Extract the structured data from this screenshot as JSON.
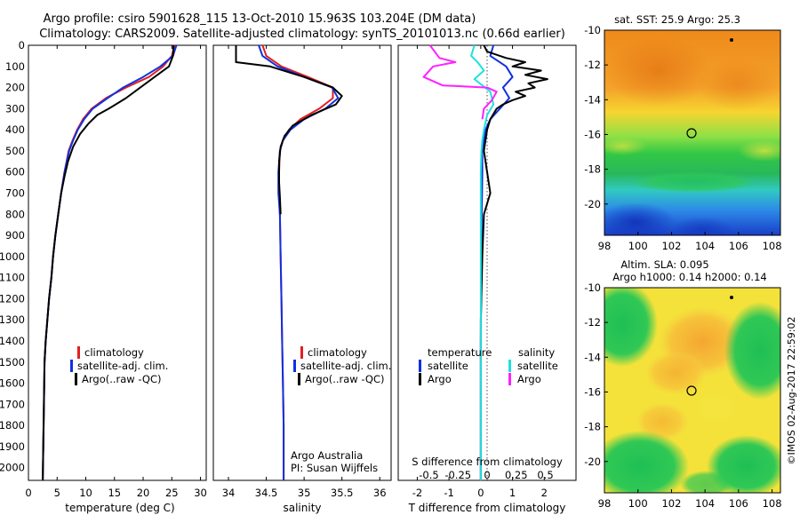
{
  "header": {
    "line1": "Argo profile: csiro 5901628_115 13-Oct-2010 15.963S 103.204E (DM data)",
    "line2": "Climatology: CARS2009. Satellite-adjusted climatology: synTS_20101013.nc (0.66d earlier)"
  },
  "colors": {
    "climatology": "#e02020",
    "satellite": "#1030e0",
    "argo": "#000000",
    "argo_salinity": "#ff20ff",
    "sat_salinity": "#20e0e0"
  },
  "y_axis": {
    "ticks": [
      "0",
      "100",
      "200",
      "300",
      "400",
      "500",
      "600",
      "700",
      "800",
      "900",
      "1000",
      "1100",
      "1200",
      "1300",
      "1400",
      "1500",
      "1600",
      "1700",
      "1800",
      "1900",
      "2000"
    ]
  },
  "legend": {
    "climatology": "climatology",
    "satellite": "satellite-adj. clim.",
    "argo": "Argo(..raw -QC)"
  },
  "diff_legend": {
    "temperature": "temperature",
    "salinity": "salinity",
    "satellite": "satellite",
    "argo": "Argo"
  },
  "credits": {
    "line1": "Argo Australia",
    "line2": "PI: Susan Wijffels"
  },
  "side_label": "©IMOS 02-Aug-2017 22:59:02",
  "maps": {
    "sst_title": "sat. SST: 25.9 Argo: 25.3",
    "sla_title1": "Altim. SLA: 0.095",
    "sla_title2": "Argo h1000: 0.14 h2000: 0.14",
    "y_ticks": [
      "-10",
      "-12",
      "-14",
      "-16",
      "-18",
      "-20"
    ],
    "x_ticks": [
      "98",
      "100",
      "102",
      "104",
      "106",
      "108"
    ]
  },
  "chart_data": [
    {
      "type": "line",
      "xlabel": "temperature (deg C)",
      "ylabel": "",
      "xlim": [
        0,
        31
      ],
      "ylim": [
        2060,
        0
      ],
      "xticks": [
        "0",
        "5",
        "10",
        "15",
        "20",
        "25",
        "30"
      ],
      "series": [
        {
          "name": "climatology",
          "x": [
            25.5,
            25.0,
            23.5,
            21.0,
            17.0,
            13.5,
            11.0,
            9.5,
            8.5,
            7.7,
            7.0,
            6.3,
            5.7,
            5.2,
            4.7,
            4.3,
            4.0,
            3.6,
            3.3,
            3.0,
            2.8,
            2.7,
            2.5
          ],
          "y": [
            0,
            50,
            100,
            150,
            200,
            250,
            300,
            350,
            400,
            450,
            500,
            600,
            700,
            800,
            900,
            1000,
            1100,
            1200,
            1300,
            1400,
            1500,
            1700,
            2060
          ]
        },
        {
          "name": "satellite-adj. clim.",
          "x": [
            25.8,
            25.2,
            23.0,
            20.0,
            16.5,
            13.8,
            11.2,
            9.7,
            8.6,
            7.8,
            7.1,
            6.3,
            5.7,
            5.2,
            4.7,
            4.3,
            4.0,
            3.6,
            3.3,
            3.0,
            2.8,
            2.7,
            2.5
          ],
          "y": [
            0,
            50,
            100,
            150,
            200,
            250,
            300,
            350,
            400,
            450,
            500,
            600,
            700,
            800,
            900,
            1000,
            1100,
            1200,
            1300,
            1400,
            1500,
            1700,
            2060
          ]
        },
        {
          "name": "Argo(..raw -QC)",
          "x": [
            25.3,
            25.2,
            24.5,
            22.0,
            19.5,
            17.0,
            14.0,
            12.0,
            10.5,
            9.0,
            7.8,
            6.9,
            6.3,
            5.7,
            5.2,
            4.7,
            4.3,
            4.0,
            3.6,
            3.3,
            3.0,
            2.8,
            2.7,
            2.5
          ],
          "y": [
            0,
            50,
            100,
            150,
            200,
            250,
            300,
            330,
            370,
            420,
            480,
            550,
            620,
            700,
            800,
            900,
            1000,
            1100,
            1200,
            1300,
            1400,
            1500,
            1700,
            2060
          ]
        }
      ]
    },
    {
      "type": "line",
      "xlabel": "salinity",
      "ylabel": "",
      "xlim": [
        33.8,
        36.15
      ],
      "ylim": [
        2060,
        0
      ],
      "xticks": [
        "34",
        "34.5",
        "35",
        "35.5",
        "36"
      ],
      "series": [
        {
          "name": "climatology",
          "x": [
            34.45,
            34.5,
            34.7,
            35.05,
            35.38,
            35.38,
            35.2,
            34.95,
            34.8,
            34.72,
            34.68,
            34.67,
            34.67,
            34.68,
            34.69,
            34.7,
            34.71,
            34.72,
            34.73,
            34.73
          ],
          "y": [
            0,
            50,
            100,
            150,
            200,
            250,
            300,
            350,
            400,
            450,
            500,
            600,
            700,
            800,
            1000,
            1200,
            1400,
            1600,
            1800,
            2060
          ]
        },
        {
          "name": "satellite-adj. clim.",
          "x": [
            34.4,
            34.45,
            34.65,
            35.0,
            35.37,
            35.45,
            35.28,
            35.0,
            34.82,
            34.72,
            34.68,
            34.66,
            34.66,
            34.68,
            34.69,
            34.7,
            34.71,
            34.72,
            34.73,
            34.73
          ],
          "y": [
            0,
            50,
            100,
            150,
            200,
            250,
            300,
            350,
            400,
            450,
            500,
            600,
            700,
            800,
            1000,
            1200,
            1400,
            1600,
            1800,
            2060
          ]
        },
        {
          "name": "Argo(..raw -QC)",
          "x": [
            34.1,
            34.1,
            34.55,
            35.0,
            35.38,
            35.5,
            35.42,
            35.1,
            34.85,
            34.74,
            34.69,
            34.67,
            34.67,
            34.68,
            34.69
          ],
          "y": [
            0,
            80,
            100,
            150,
            200,
            240,
            280,
            330,
            380,
            430,
            480,
            550,
            650,
            720,
            800
          ]
        }
      ]
    },
    {
      "type": "line",
      "xlabel": "T difference from climatology",
      "xlabel_top": "S difference from climatology",
      "ylabel": "",
      "xlim": [
        -2.6,
        3.0
      ],
      "ylim": [
        2060,
        0
      ],
      "xticks": [
        "-2",
        "-1",
        "0",
        "1",
        "2"
      ],
      "xticks_top": [
        "-0.5",
        "-0.25",
        "0",
        "0.25",
        "0.5"
      ],
      "series": [
        {
          "name": "satellite (temperature)",
          "x": [
            0.4,
            0.3,
            0.8,
            1.0,
            0.7,
            0.9,
            0.6,
            0.3,
            0.15,
            0.1,
            0.05,
            0.05,
            0.04,
            0.03,
            0.02,
            0.01,
            0.0,
            0.0,
            0.0,
            0.0
          ],
          "y": [
            0,
            50,
            100,
            150,
            200,
            250,
            300,
            350,
            400,
            450,
            500,
            600,
            700,
            800,
            1000,
            1200,
            1400,
            1600,
            1800,
            2060
          ]
        },
        {
          "name": "Argo (temperature)",
          "x": [
            0.1,
            0.2,
            0.8,
            1.4,
            1.0,
            1.9,
            1.4,
            2.1,
            1.5,
            1.7,
            1.1,
            1.4,
            1.0,
            0.7,
            0.5,
            0.3,
            0.2,
            0.1,
            0.2,
            0.3,
            0.1,
            0.05,
            0.0,
            0.0
          ],
          "y": [
            0,
            30,
            60,
            80,
            100,
            120,
            140,
            160,
            180,
            200,
            220,
            240,
            260,
            280,
            300,
            350,
            400,
            500,
            600,
            700,
            800,
            1000,
            1300,
            2060
          ]
        },
        {
          "name": "satellite (salinity)",
          "x": [
            -0.2,
            -0.3,
            -0.1,
            0.1,
            -0.2,
            0.3,
            0.4,
            0.2,
            0.1,
            0.05,
            0.02,
            0.0,
            0.0,
            0.0,
            0.0,
            0.0
          ],
          "y": [
            0,
            50,
            80,
            120,
            160,
            220,
            280,
            330,
            400,
            450,
            500,
            600,
            800,
            1000,
            1500,
            2060
          ]
        },
        {
          "name": "Argo (salinity)",
          "x": [
            -1.6,
            -1.3,
            -0.8,
            -1.5,
            -1.8,
            -1.2,
            0.2,
            0.5,
            0.35,
            0.1,
            0.05
          ],
          "y": [
            0,
            60,
            80,
            100,
            150,
            190,
            200,
            220,
            260,
            300,
            350
          ]
        }
      ]
    },
    {
      "type": "heatmap",
      "title": "sat. SST: 25.9 Argo: 25.3",
      "xlim": [
        98,
        108.5
      ],
      "ylim": [
        -21.8,
        -10
      ],
      "argo_position": {
        "lon": 103.2,
        "lat": -15.96
      },
      "colormap": "jet"
    },
    {
      "type": "heatmap",
      "title": "Altim. SLA: 0.095",
      "subtitle": "Argo h1000: 0.14 h2000: 0.14",
      "xlim": [
        98,
        108.5
      ],
      "ylim": [
        -21.8,
        -10
      ],
      "argo_position": {
        "lon": 103.2,
        "lat": -15.96
      },
      "colormap": "jet"
    }
  ]
}
